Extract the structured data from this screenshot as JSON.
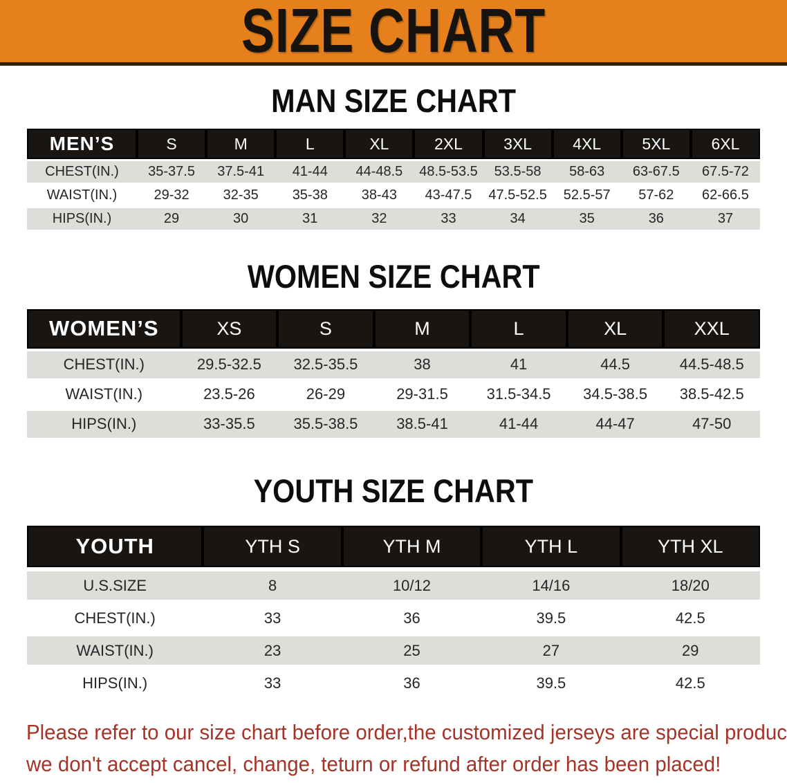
{
  "banner": {
    "title": "SIZE CHART",
    "bg_color": "#E5801C"
  },
  "sections": [
    {
      "heading": "MAN SIZE CHART",
      "table": {
        "header": [
          "MEN’S",
          "S",
          "M",
          "L",
          "XL",
          "2XL",
          "3XL",
          "4XL",
          "5XL",
          "6XL"
        ],
        "rows": [
          [
            "CHEST(IN.)",
            "35-37.5",
            "37.5-41",
            "41-44",
            "44-48.5",
            "48.5-53.5",
            "53.5-58",
            "58-63",
            "63-67.5",
            "67.5-72"
          ],
          [
            "WAIST(IN.)",
            "29-32",
            "32-35",
            "35-38",
            "38-43",
            "43-47.5",
            "47.5-52.5",
            "52.5-57",
            "57-62",
            "62-66.5"
          ],
          [
            "HIPS(IN.)",
            "29",
            "30",
            "31",
            "32",
            "33",
            "34",
            "35",
            "36",
            "37"
          ]
        ]
      }
    },
    {
      "heading": "WOMEN SIZE CHART",
      "table": {
        "header": [
          "WOMEN’S",
          "XS",
          "S",
          "M",
          "L",
          "XL",
          "XXL"
        ],
        "rows": [
          [
            "CHEST(IN.)",
            "29.5-32.5",
            "32.5-35.5",
            "38",
            "41",
            "44.5",
            "44.5-48.5"
          ],
          [
            "WAIST(IN.)",
            "23.5-26",
            "26-29",
            "29-31.5",
            "31.5-34.5",
            "34.5-38.5",
            "38.5-42.5"
          ],
          [
            "HIPS(IN.)",
            "33-35.5",
            "35.5-38.5",
            "38.5-41",
            "41-44",
            "44-47",
            "47-50"
          ]
        ]
      }
    },
    {
      "heading": "YOUTH SIZE CHART",
      "table": {
        "header": [
          "YOUTH",
          "YTH S",
          "YTH M",
          "YTH L",
          "YTH XL"
        ],
        "rows": [
          [
            "U.S.SIZE",
            "8",
            "10/12",
            "14/16",
            "18/20"
          ],
          [
            "CHEST(IN.)",
            "33",
            "36",
            "39.5",
            "42.5"
          ],
          [
            "WAIST(IN.)",
            "23",
            "25",
            "27",
            "29"
          ],
          [
            "HIPS(IN.)",
            "33",
            "36",
            "39.5",
            "42.5"
          ]
        ]
      }
    }
  ],
  "disclaimer": {
    "line1": "Please refer to our size chart before order,the customized jerseys are special products,",
    "line2": "we don't accept cancel, change, teturn or refund after order has been placed!",
    "color": "#A63327"
  },
  "colors": {
    "banner_orange": "#E5801C",
    "header_black": "#181512",
    "row_gray": "#DEDDDA",
    "row_white": "#FFFFFF",
    "disclaimer_red": "#A63327"
  }
}
